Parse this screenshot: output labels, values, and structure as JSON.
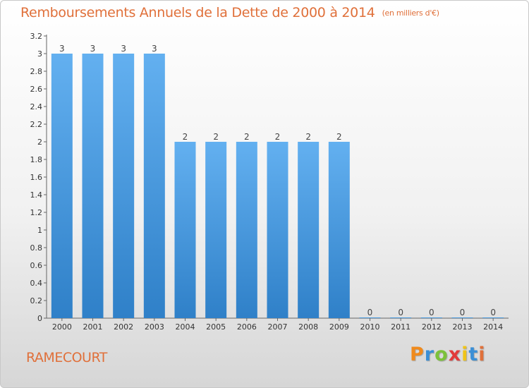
{
  "chart_data": {
    "type": "bar",
    "title": "Remboursements Annuels de la Dette de 2000 à 2014",
    "subtitle": "(en milliers d'€)",
    "categories": [
      "2000",
      "2001",
      "2002",
      "2003",
      "2004",
      "2005",
      "2006",
      "2007",
      "2008",
      "2009",
      "2010",
      "2011",
      "2012",
      "2013",
      "2014"
    ],
    "values": [
      3,
      3,
      3,
      3,
      2,
      2,
      2,
      2,
      2,
      2,
      0,
      0,
      0,
      0,
      0
    ],
    "value_labels": [
      "3",
      "3",
      "3",
      "3",
      "2",
      "2",
      "2",
      "2",
      "2",
      "2",
      "0",
      "0",
      "0",
      "0",
      "0"
    ],
    "y_ticks": [
      "0",
      "0.2",
      "0.4",
      "0.6",
      "0.8",
      "1",
      "1.2",
      "1.4",
      "1.6",
      "1.8",
      "2",
      "2.2",
      "2.4",
      "2.6",
      "2.8",
      "3",
      "3.2"
    ],
    "ylim": [
      0,
      3.2
    ],
    "grid": false,
    "bar_color": "#3a8fd6"
  },
  "footer": {
    "commune": "RAMECOURT",
    "logo_letters": [
      "P",
      "r",
      "o",
      "x",
      "i",
      "t",
      "i"
    ],
    "logo_colors": [
      "#f08a1c",
      "#3a8fd6",
      "#7cc13b",
      "#e23a3a",
      "#f0c419",
      "#3a8fd6",
      "#e0703a"
    ]
  }
}
